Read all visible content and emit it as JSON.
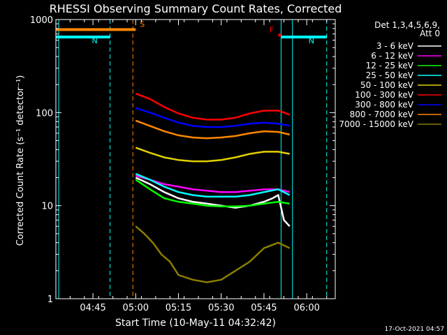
{
  "chart_data": {
    "type": "line",
    "title": "RHESSI Observing Summary Count Rates, Corrected",
    "xlabel": "Start Time (10-May-11 04:32:42)",
    "ylabel": "Corrected Count Rate (s⁻¹ detector⁻¹)",
    "y_scale": "log",
    "ylim": [
      1,
      1000
    ],
    "xlim": [
      "04:32",
      "06:10"
    ],
    "x_ticks": [
      "04:45",
      "05:00",
      "05:15",
      "05:30",
      "05:45",
      "06:00"
    ],
    "y_ticks": [
      "1",
      "10",
      "100",
      "1000"
    ],
    "legend_title": "Det 1,3,4,5,6,9,",
    "legend_subtitle": "Att 0",
    "legend_position": "right",
    "timestamp": "17-Oct-2021 04:57",
    "annotations": [
      {
        "label": "N",
        "color": "#00ffff",
        "type": "night",
        "x_start": "04:32",
        "x_end": "04:51",
        "y": 650
      },
      {
        "label": "N",
        "color": "#00ffff",
        "type": "night",
        "x_start": "05:51",
        "x_end": "06:07",
        "y": 650
      },
      {
        "label": "S",
        "color": "#ff8800",
        "type": "saa",
        "x_start": "04:32",
        "x_end": "05:00",
        "y": 780
      },
      {
        "label": "F",
        "color": "#ff0000",
        "type": "flare",
        "x_start": "05:50",
        "x_end": "05:51",
        "y": 680
      }
    ],
    "vlines": [
      {
        "x": "04:33",
        "color": "#00ffff",
        "style": "solid"
      },
      {
        "x": "04:51",
        "color": "#00ffff",
        "style": "dashed"
      },
      {
        "x": "04:59",
        "color": "#ff8800",
        "style": "dashed"
      },
      {
        "x": "05:51",
        "color": "#00ffff",
        "style": "solid"
      },
      {
        "x": "05:55",
        "color": "#00ffff",
        "style": "solid"
      },
      {
        "x": "06:07",
        "color": "#00ffff",
        "style": "dashed"
      }
    ],
    "series": [
      {
        "name": "3 - 6 keV",
        "color": "#ffffff",
        "x": [
          "05:00",
          "05:05",
          "05:10",
          "05:15",
          "05:20",
          "05:25",
          "05:30",
          "05:35",
          "05:40",
          "05:45",
          "05:48",
          "05:50",
          "05:52",
          "05:54"
        ],
        "y": [
          20,
          17,
          14,
          12,
          11,
          10.5,
          10,
          9.5,
          10,
          11,
          12,
          13,
          7,
          6
        ]
      },
      {
        "name": "6 - 12 keV",
        "color": "#ff00ff",
        "x": [
          "05:00",
          "05:05",
          "05:10",
          "05:15",
          "05:20",
          "05:25",
          "05:30",
          "05:35",
          "05:40",
          "05:45",
          "05:50",
          "05:54"
        ],
        "y": [
          21,
          19,
          17,
          16,
          15,
          14.5,
          14,
          14,
          14.5,
          15,
          15,
          14
        ]
      },
      {
        "name": "12 - 25 keV",
        "color": "#00ff00",
        "x": [
          "05:00",
          "05:05",
          "05:10",
          "05:15",
          "05:20",
          "05:25",
          "05:30",
          "05:35",
          "05:40",
          "05:45",
          "05:50",
          "05:54"
        ],
        "y": [
          19,
          15,
          12,
          11,
          10.5,
          10,
          9.8,
          9.8,
          10,
          10.5,
          11,
          10.5
        ]
      },
      {
        "name": "25 - 50 keV",
        "color": "#00ffff",
        "x": [
          "05:00",
          "05:05",
          "05:10",
          "05:15",
          "05:20",
          "05:25",
          "05:30",
          "05:35",
          "05:40",
          "05:45",
          "05:50",
          "05:54"
        ],
        "y": [
          22,
          19,
          16,
          14,
          13,
          12.5,
          12.5,
          12.5,
          13,
          14,
          15,
          13
        ]
      },
      {
        "name": "50 - 100 keV",
        "color": "#e0d000",
        "x": [
          "05:00",
          "05:05",
          "05:10",
          "05:15",
          "05:20",
          "05:25",
          "05:30",
          "05:35",
          "05:40",
          "05:45",
          "05:50",
          "05:54"
        ],
        "y": [
          42,
          37,
          33,
          31,
          30,
          30,
          31,
          33,
          36,
          38,
          38,
          36
        ]
      },
      {
        "name": "100 - 300 keV",
        "color": "#ff0000",
        "x": [
          "05:00",
          "05:05",
          "05:10",
          "05:15",
          "05:20",
          "05:25",
          "05:30",
          "05:35",
          "05:40",
          "05:45",
          "05:50",
          "05:54"
        ],
        "y": [
          160,
          140,
          115,
          98,
          88,
          84,
          84,
          88,
          98,
          105,
          105,
          95
        ]
      },
      {
        "name": "300 - 800 keV",
        "color": "#0000ff",
        "x": [
          "05:00",
          "05:05",
          "05:10",
          "05:15",
          "05:20",
          "05:25",
          "05:30",
          "05:35",
          "05:40",
          "05:45",
          "05:50",
          "05:54"
        ],
        "y": [
          112,
          100,
          88,
          78,
          72,
          70,
          70,
          72,
          76,
          78,
          76,
          72
        ]
      },
      {
        "name": "800 - 7000 keV",
        "color": "#ff8800",
        "x": [
          "05:00",
          "05:05",
          "05:10",
          "05:15",
          "05:20",
          "05:25",
          "05:30",
          "05:35",
          "05:40",
          "05:45",
          "05:50",
          "05:54"
        ],
        "y": [
          82,
          72,
          63,
          57,
          54,
          53,
          54,
          56,
          60,
          63,
          62,
          58
        ]
      },
      {
        "name": "7000 - 15000 keV",
        "color": "#8b7d00",
        "x": [
          "05:00",
          "05:03",
          "05:06",
          "05:09",
          "05:12",
          "05:15",
          "05:20",
          "05:25",
          "05:30",
          "05:35",
          "05:40",
          "05:45",
          "05:50",
          "05:54"
        ],
        "y": [
          6,
          5,
          4,
          3,
          2.5,
          1.8,
          1.6,
          1.5,
          1.6,
          2,
          2.5,
          3.5,
          4,
          3.5
        ]
      }
    ]
  }
}
